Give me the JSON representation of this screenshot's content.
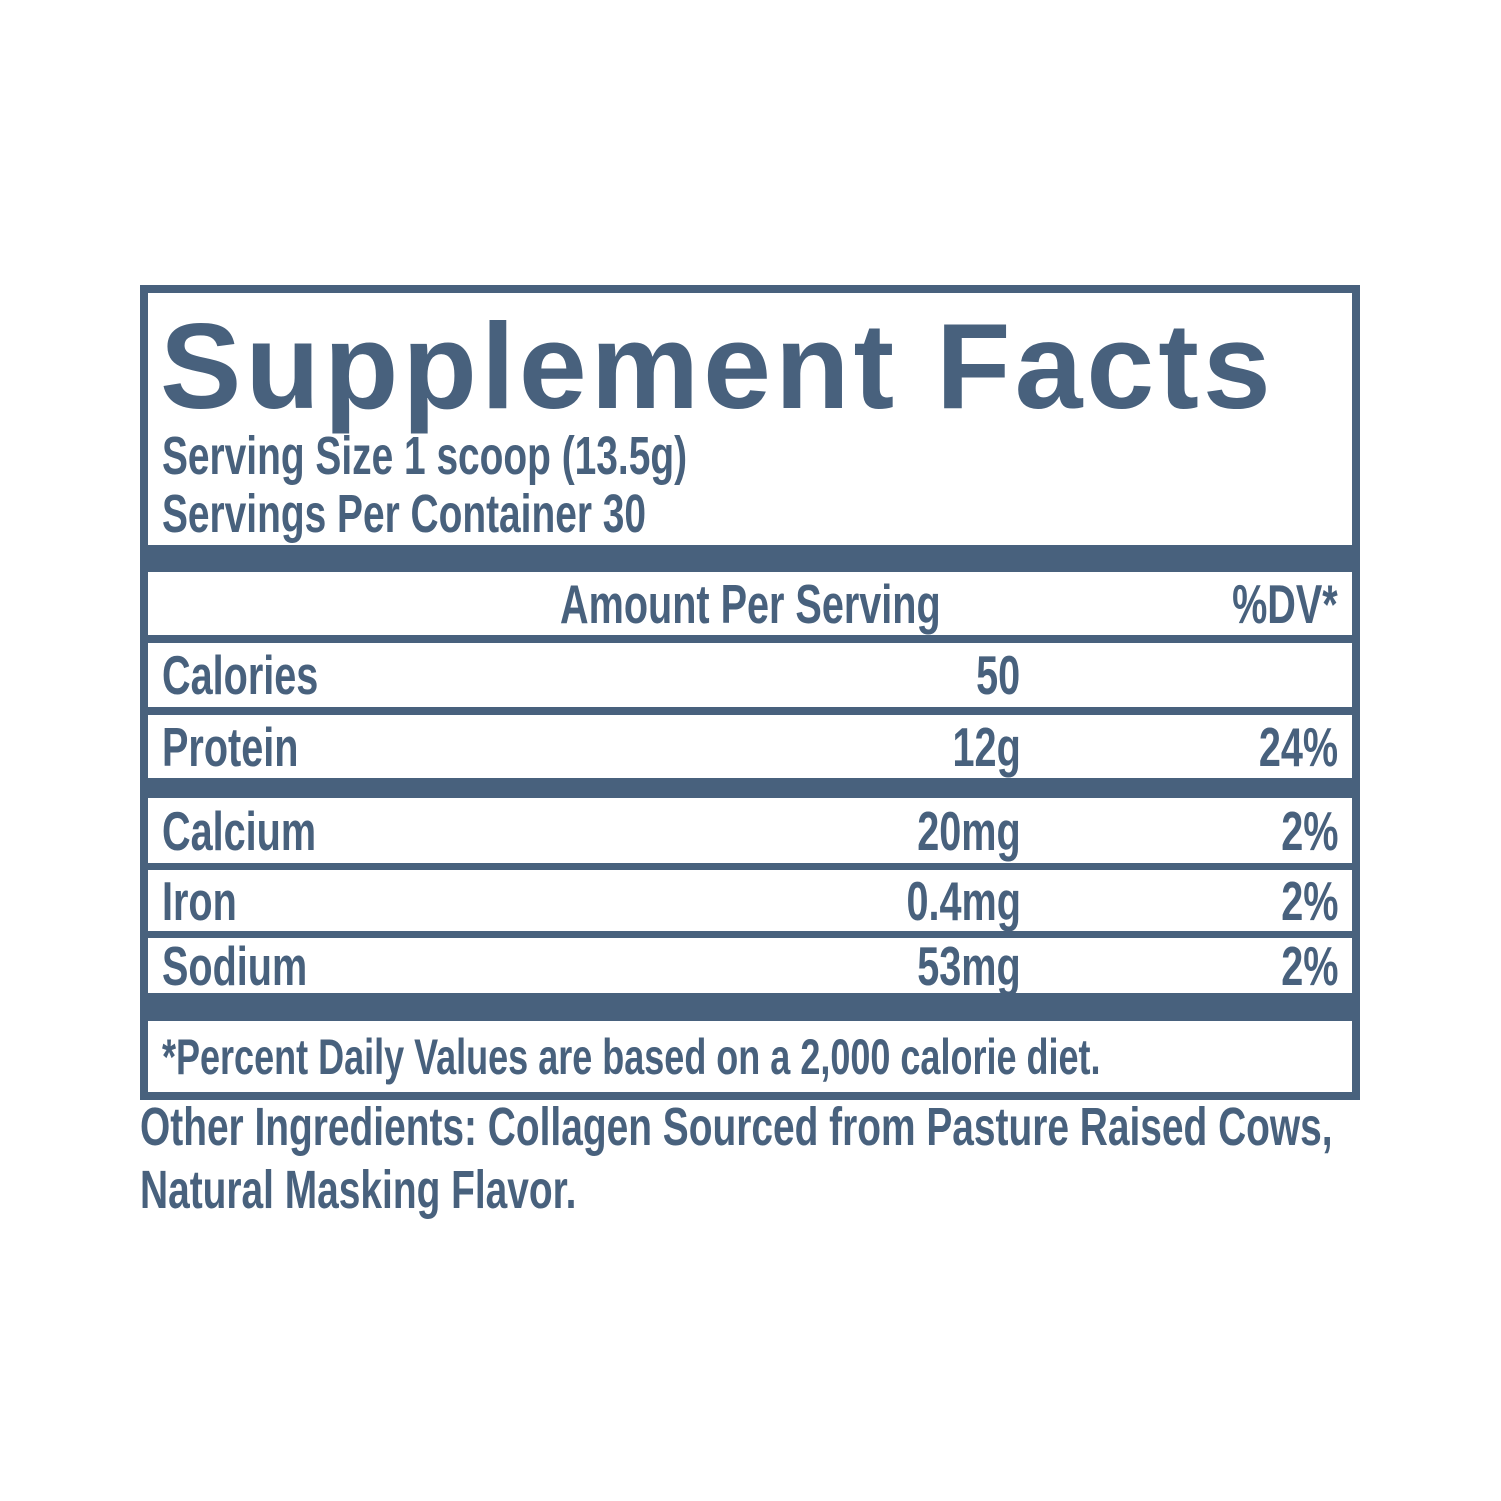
{
  "colors": {
    "primary": "#48617D",
    "background": "#FFFFFF"
  },
  "panel": {
    "title": "Supplement Facts",
    "serving_size": "Serving Size 1 scoop (13.5g)",
    "servings_per_container": "Servings Per Container 30",
    "columns": {
      "amount_header": "Amount Per Serving",
      "dv_header": "%DV*"
    },
    "rows": [
      {
        "name": "Calories",
        "amount": "50",
        "dv": ""
      },
      {
        "name": "Protein",
        "amount": "12g",
        "dv": "24%"
      },
      {
        "name": "Calcium",
        "amount": "20mg",
        "dv": "2%"
      },
      {
        "name": "Iron",
        "amount": "0.4mg",
        "dv": "2%"
      },
      {
        "name": "Sodium",
        "amount": "53mg",
        "dv": "2%"
      }
    ],
    "footnote": "*Percent Daily Values are based on a 2,000 calorie diet."
  },
  "other_ingredients": {
    "line1": "Other Ingredients: Collagen Sourced from Pasture Raised Cows,",
    "line2": "Natural Masking Flavor."
  }
}
